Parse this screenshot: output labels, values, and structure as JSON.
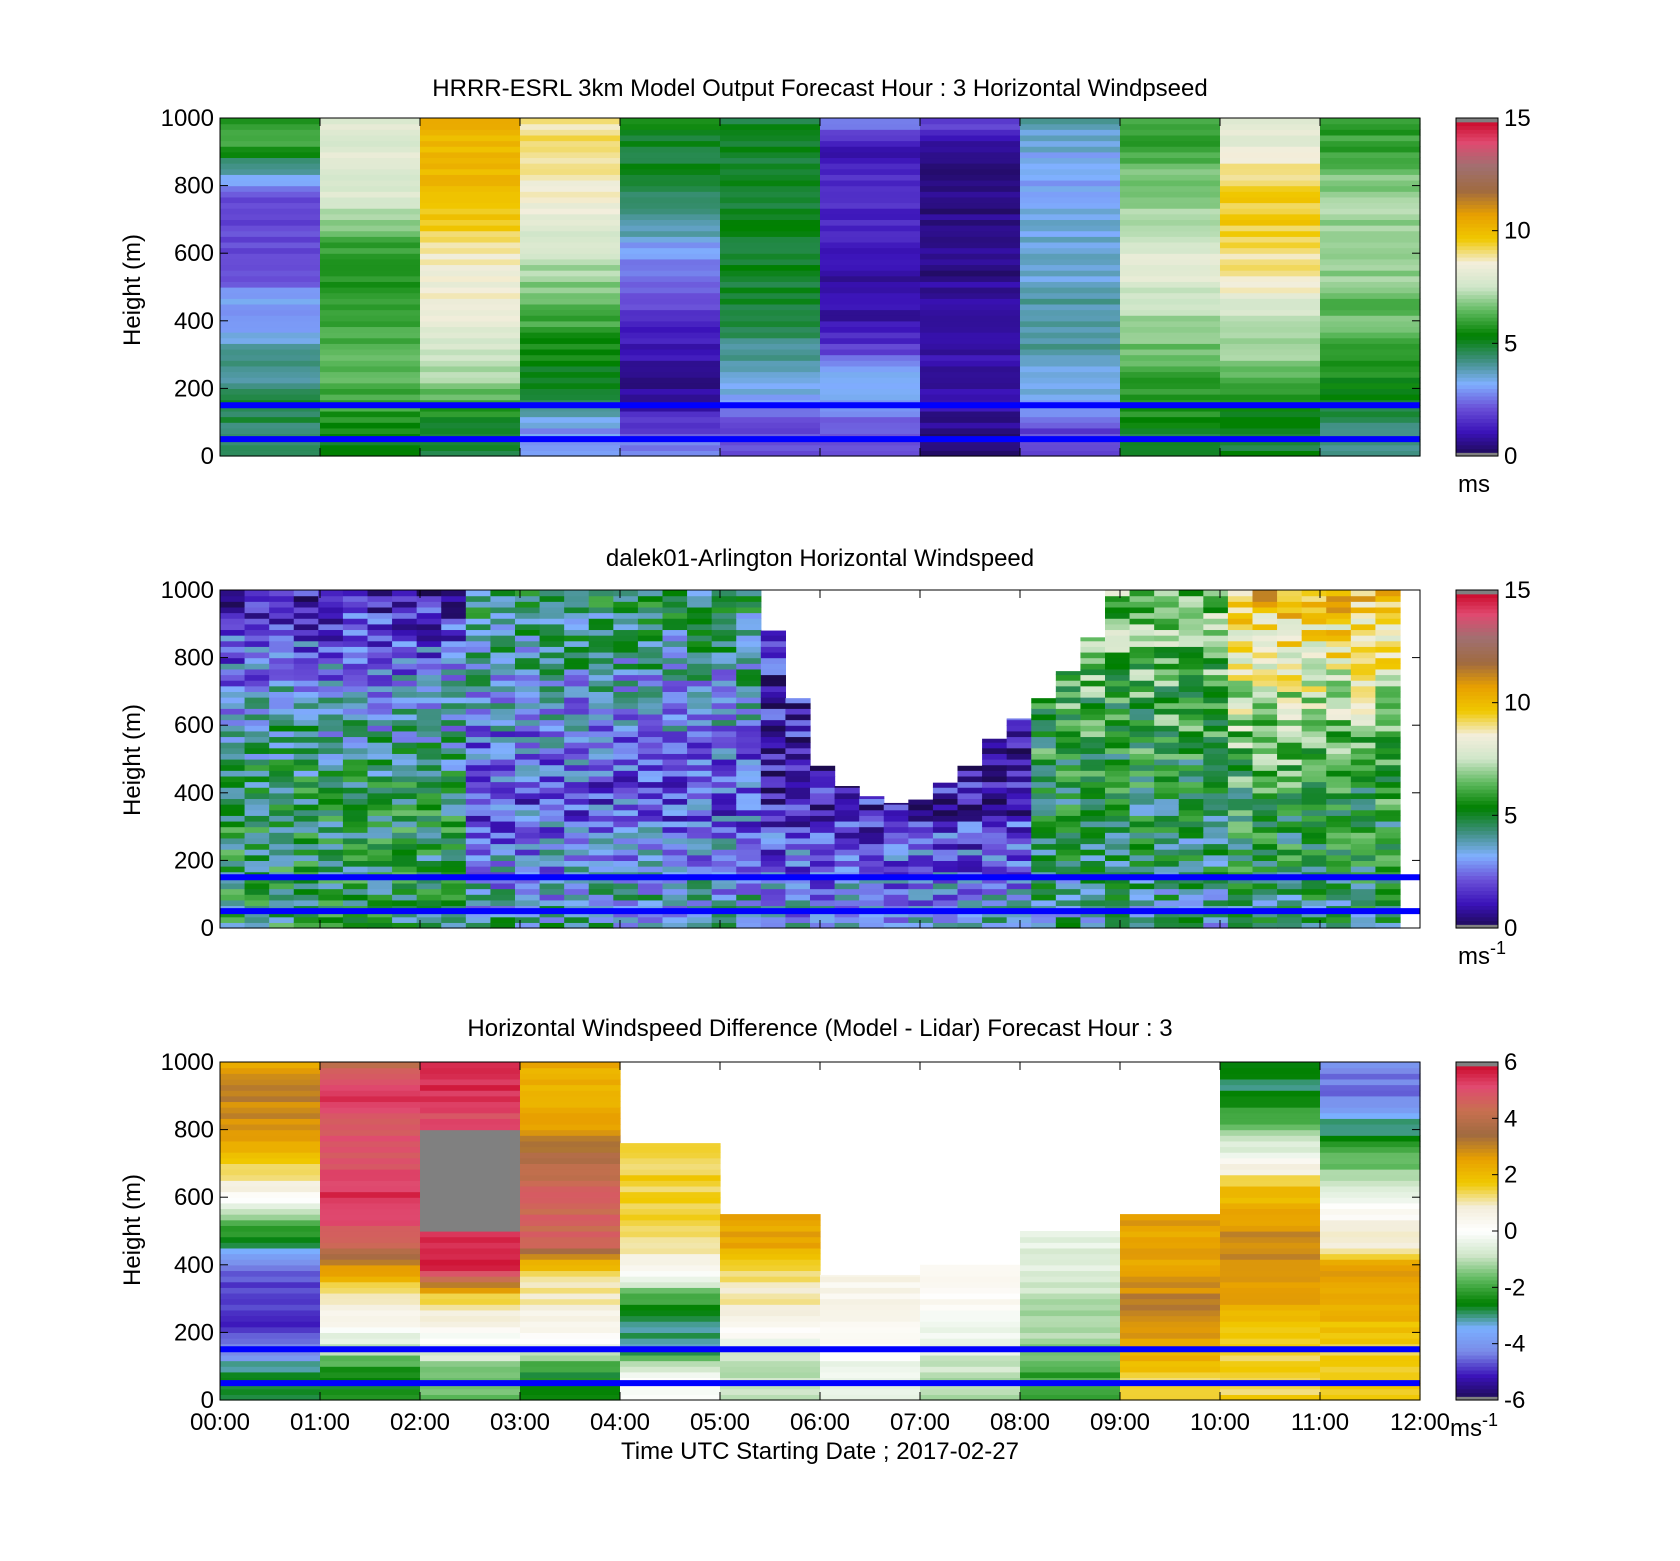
{
  "chart_data": [
    {
      "type": "heatmap",
      "title": "HRRR-ESRL 3km Model Output   Forecast Hour : 3 Horizontal Windpseed",
      "ylabel": "Height (m)",
      "ylim": [
        0,
        1000
      ],
      "yticks": [
        "0",
        "200",
        "400",
        "600",
        "800",
        "1000"
      ],
      "x_ticks_labeled": false,
      "colorbar": {
        "range": [
          0,
          15
        ],
        "ticks": [
          "0",
          "5",
          "10",
          "15"
        ],
        "unit": "ms",
        "unit_sup": "",
        "palette": "wind"
      },
      "reference_lines": [
        {
          "height": 150,
          "color": "#0000ff"
        },
        {
          "height": 50,
          "color": "#0000ff"
        }
      ],
      "columns": 12,
      "column_values": [
        [
          5,
          4.5,
          4.8,
          4,
          4,
          3,
          3,
          2,
          2,
          2,
          2,
          4,
          6,
          6
        ],
        [
          5,
          5.5,
          6,
          6.5,
          6.5,
          6,
          6,
          5.5,
          6,
          7,
          8,
          8,
          8,
          8
        ],
        [
          5,
          5,
          6,
          7,
          7.5,
          8,
          8.5,
          8.5,
          9,
          9.5,
          10,
          10,
          10,
          10.5
        ],
        [
          3,
          3,
          4.5,
          5,
          5.5,
          6,
          6.5,
          7,
          7.5,
          8,
          8.5,
          9,
          9,
          9
        ],
        [
          3,
          2,
          1,
          0.5,
          1,
          1.5,
          2,
          2.5,
          3,
          4.2,
          4.5,
          5,
          5,
          5.5
        ],
        [
          2,
          2,
          3,
          3.5,
          4,
          5,
          5,
          5,
          5,
          5,
          5,
          5,
          5,
          5
        ],
        [
          2,
          2,
          3,
          3.5,
          2,
          1,
          1,
          1,
          1,
          1.5,
          1.5,
          1.5,
          1,
          3
        ],
        [
          0.5,
          0.5,
          1,
          1,
          1,
          1,
          1,
          0.5,
          0.5,
          0.5,
          0.5,
          0.5,
          1,
          2
        ],
        [
          2,
          2,
          3,
          3.5,
          4,
          4,
          4,
          3.5,
          3.5,
          3.5,
          3,
          3,
          3.5,
          4
        ],
        [
          5,
          5,
          6,
          6,
          6.5,
          7,
          7.5,
          8,
          8,
          7,
          7,
          6.5,
          6,
          6
        ],
        [
          5,
          5,
          5.5,
          6.5,
          7,
          7.5,
          8,
          9,
          9,
          9.5,
          9.5,
          9,
          8,
          8
        ],
        [
          4,
          4,
          5,
          5.5,
          6,
          6.5,
          6.5,
          7,
          7,
          7,
          7,
          6.5,
          6,
          6
        ]
      ]
    },
    {
      "type": "heatmap",
      "title": "dalek01-Arlington  Horizontal Windspeed",
      "ylabel": "Height (m)",
      "ylim": [
        0,
        1000
      ],
      "yticks": [
        "0",
        "200",
        "400",
        "600",
        "800",
        "1000"
      ],
      "x_ticks_labeled": false,
      "colorbar": {
        "range": [
          0,
          15
        ],
        "ticks": [
          "0",
          "5",
          "10",
          "15"
        ],
        "unit": "ms",
        "unit_sup": "-1",
        "palette": "wind"
      },
      "reference_lines": [
        {
          "height": 150,
          "color": "#0000ff"
        },
        {
          "height": 50,
          "color": "#0000ff"
        }
      ],
      "columns": 48,
      "data_extent_hours": 11.8,
      "column_top_heights": [
        1000,
        1000,
        1000,
        1000,
        1000,
        1000,
        1000,
        1000,
        1000,
        1000,
        1000,
        1000,
        1000,
        1000,
        1000,
        1000,
        1000,
        1000,
        1000,
        1000,
        1000,
        1000,
        880,
        680,
        480,
        420,
        390,
        370,
        380,
        430,
        480,
        560,
        620,
        680,
        760,
        860,
        1000,
        1000,
        1000,
        1000,
        1000,
        1000,
        1000,
        1000,
        1000,
        1000,
        1000,
        1000
      ],
      "value_ramps": [
        {
          "from_hour": 0,
          "to_hour": 2.5,
          "surface": 5,
          "mid_400": 5,
          "aloft": 1.2
        },
        {
          "from_hour": 2.5,
          "to_hour": 5.5,
          "surface": 4,
          "mid_400": 2,
          "aloft": 4.8
        },
        {
          "from_hour": 5.5,
          "to_hour": 8,
          "surface": 3.5,
          "mid_400": 1.2,
          "aloft": 1.5
        },
        {
          "from_hour": 8,
          "to_hour": 10,
          "surface": 4,
          "mid_400": 5,
          "aloft": 7
        },
        {
          "from_hour": 10,
          "to_hour": 11.8,
          "surface": 4.5,
          "mid_400": 5.5,
          "aloft": 10
        }
      ]
    },
    {
      "type": "heatmap",
      "title": "Horizontal Windspeed Difference (Model - Lidar) Forecast Hour : 3",
      "ylabel": "Height (m)",
      "xlabel": "Time UTC  Starting Date ; 2017-02-27",
      "xticks": [
        "00:00",
        "01:00",
        "02:00",
        "03:00",
        "04:00",
        "05:00",
        "06:00",
        "07:00",
        "08:00",
        "09:00",
        "10:00",
        "11:00",
        "12:00"
      ],
      "ylim": [
        0,
        1000
      ],
      "yticks": [
        "0",
        "200",
        "400",
        "600",
        "800",
        "1000"
      ],
      "colorbar": {
        "range": [
          -6,
          6
        ],
        "ticks": [
          "-6",
          "-4",
          "-2",
          "0",
          "2",
          "4",
          "6"
        ],
        "unit": "ms",
        "unit_sup": "-1",
        "palette": "diff"
      },
      "reference_lines": [
        {
          "height": 150,
          "color": "#0000ff"
        },
        {
          "height": 50,
          "color": "#0000ff"
        }
      ],
      "columns": 12,
      "column_top_heights": [
        1000,
        1000,
        1000,
        1000,
        760,
        550,
        370,
        400,
        500,
        550,
        1000,
        1000
      ],
      "missing_region": {
        "column": 2,
        "from_height": 500,
        "to_height": 800,
        "color": "#808080"
      },
      "column_values": [
        [
          -2.5,
          -2.5,
          -4.5,
          -5,
          -5,
          -4.5,
          -3,
          -1.5,
          0.5,
          1.5,
          2.5,
          3,
          3,
          2.5
        ],
        [
          -2.5,
          -2.5,
          -1,
          0.5,
          1,
          2.5,
          4.5,
          5,
          5.5,
          5,
          5,
          5,
          5.5,
          4
        ],
        [
          -1.5,
          -1.5,
          -0.5,
          0.5,
          1.5,
          5.5,
          5.5,
          5,
          5,
          5,
          5,
          5,
          5.5,
          5.5
        ],
        [
          -2.5,
          -2.5,
          -0.5,
          0.5,
          1,
          1.5,
          4.5,
          4.5,
          4.5,
          4,
          3,
          2.5,
          2,
          2.5
        ],
        [
          0,
          0,
          -3,
          -3,
          -2,
          0.5,
          1,
          1.5,
          1.5,
          1.5,
          1.5,
          1.5,
          1.5,
          1.5
        ],
        [
          -1,
          -1,
          -0.5,
          0.5,
          1,
          1.5,
          2.5,
          2.5,
          2.5,
          2.5,
          2.5,
          2.5,
          2.5,
          2.5
        ],
        [
          -0.5,
          -0.5,
          0,
          0.5,
          0.5,
          0.5,
          0.5,
          0.5,
          0.5,
          0.5,
          0.5,
          0.5,
          0.5,
          0.5
        ],
        [
          -1,
          -1,
          -0.5,
          0,
          0.3,
          0.5,
          0.5,
          0.5,
          0.5,
          0.5,
          0.5,
          0.5,
          0.5,
          0.5
        ],
        [
          -2,
          -2,
          -1.5,
          -1,
          -1,
          -0.5,
          -0.5,
          -0.5,
          -0.5,
          -0.5,
          -0.5,
          -0.5,
          -0.5,
          -0.5
        ],
        [
          1.5,
          1.5,
          2.5,
          3,
          3,
          2.5,
          2.5,
          2.5,
          2.5,
          2.5,
          2.5,
          2.5,
          2.5,
          2.5
        ],
        [
          1.5,
          1.5,
          1.5,
          2,
          2.5,
          3,
          3,
          2.5,
          2,
          0.5,
          -1,
          -2,
          -3,
          -2.5
        ],
        [
          1.5,
          1.5,
          1.5,
          2,
          2.5,
          2.5,
          1,
          0.5,
          -0.5,
          -1.5,
          -2.5,
          -3.5,
          -4.5,
          -4
        ]
      ]
    }
  ],
  "colors": {
    "reference_line": "#0000ff",
    "missing": "#808080",
    "wind_palette": [
      "#1c0a4e",
      "#3a12b8",
      "#6a50d8",
      "#80b0ff",
      "#3d8f7d",
      "#008000",
      "#5cb85c",
      "#cfe6c9",
      "#f3eedc",
      "#f0c800",
      "#e8a000",
      "#a06a40",
      "#a07070",
      "#e04a70",
      "#c80020"
    ],
    "diff_palette": [
      "#1c0a4e",
      "#3a12b8",
      "#7a8ae8",
      "#7ab0ff",
      "#008000",
      "#5cb85c",
      "#cfe6c9",
      "#ffffff",
      "#f3eedc",
      "#f0c800",
      "#e8a000",
      "#a06a40",
      "#c87050",
      "#e04a70",
      "#c80020"
    ]
  }
}
